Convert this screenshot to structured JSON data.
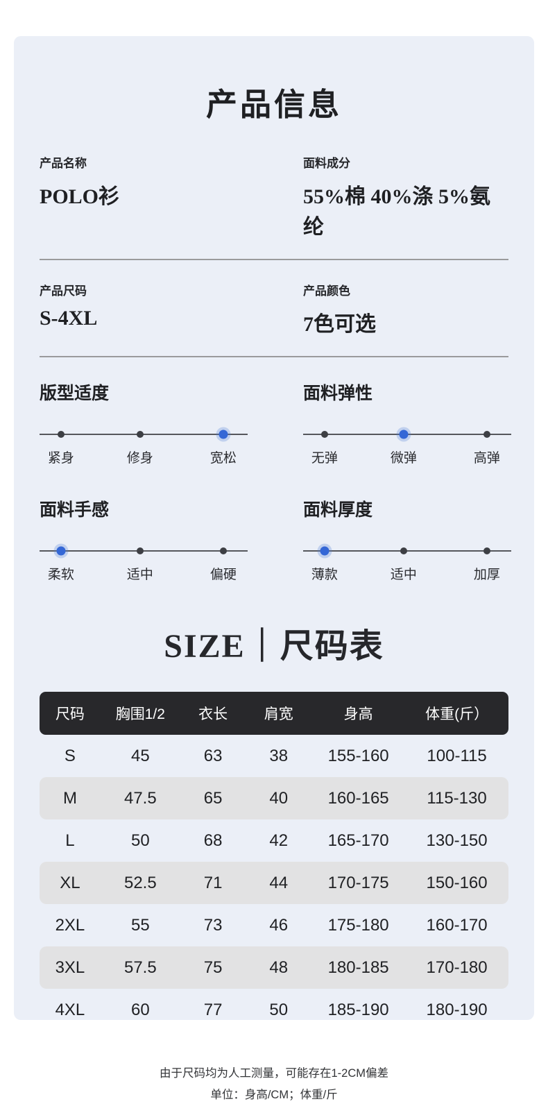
{
  "page_title": "产品信息",
  "colors": {
    "card_background": "#ebeff7",
    "accent_blue": "#3467d6",
    "table_header_background": "#28282b",
    "table_alt_row": "#e2e2e3"
  },
  "info": {
    "fields": [
      {
        "label": "产品名称",
        "value": "POLO衫"
      },
      {
        "label": "面料成分",
        "value": "55%棉 40%涤 5%氨纶"
      },
      {
        "label": "产品尺码",
        "value": "S-4XL"
      },
      {
        "label": "产品颜色",
        "value": "7色可选"
      }
    ]
  },
  "attributes": [
    {
      "title": "版型适度",
      "options": [
        "紧身",
        "修身",
        "宽松"
      ],
      "active": 2
    },
    {
      "title": "面料弹性",
      "options": [
        "无弹",
        "微弹",
        "高弹"
      ],
      "active": 1
    },
    {
      "title": "面料手感",
      "options": [
        "柔软",
        "适中",
        "偏硬"
      ],
      "active": 0
    },
    {
      "title": "面料厚度",
      "options": [
        "薄款",
        "适中",
        "加厚"
      ],
      "active": 0
    }
  ],
  "size_section": {
    "title": "SIZE｜尺码表",
    "table": {
      "headers": [
        "尺码",
        "胸围1/2",
        "衣长",
        "肩宽",
        "身高",
        "体重(斤）"
      ],
      "rows": [
        [
          "S",
          "45",
          "63",
          "38",
          "155-160",
          "100-115"
        ],
        [
          "M",
          "47.5",
          "65",
          "40",
          "160-165",
          "115-130"
        ],
        [
          "L",
          "50",
          "68",
          "42",
          "165-170",
          "130-150"
        ],
        [
          "XL",
          "52.5",
          "71",
          "44",
          "170-175",
          "150-160"
        ],
        [
          "2XL",
          "55",
          "73",
          "46",
          "175-180",
          "160-170"
        ],
        [
          "3XL",
          "57.5",
          "75",
          "48",
          "180-185",
          "170-180"
        ],
        [
          "4XL",
          "60",
          "77",
          "50",
          "185-190",
          "180-190"
        ]
      ]
    },
    "notes": [
      "由于尺码均为人工测量，可能存在1-2CM偏差",
      "单位：身高/CM；体重/斤"
    ]
  }
}
